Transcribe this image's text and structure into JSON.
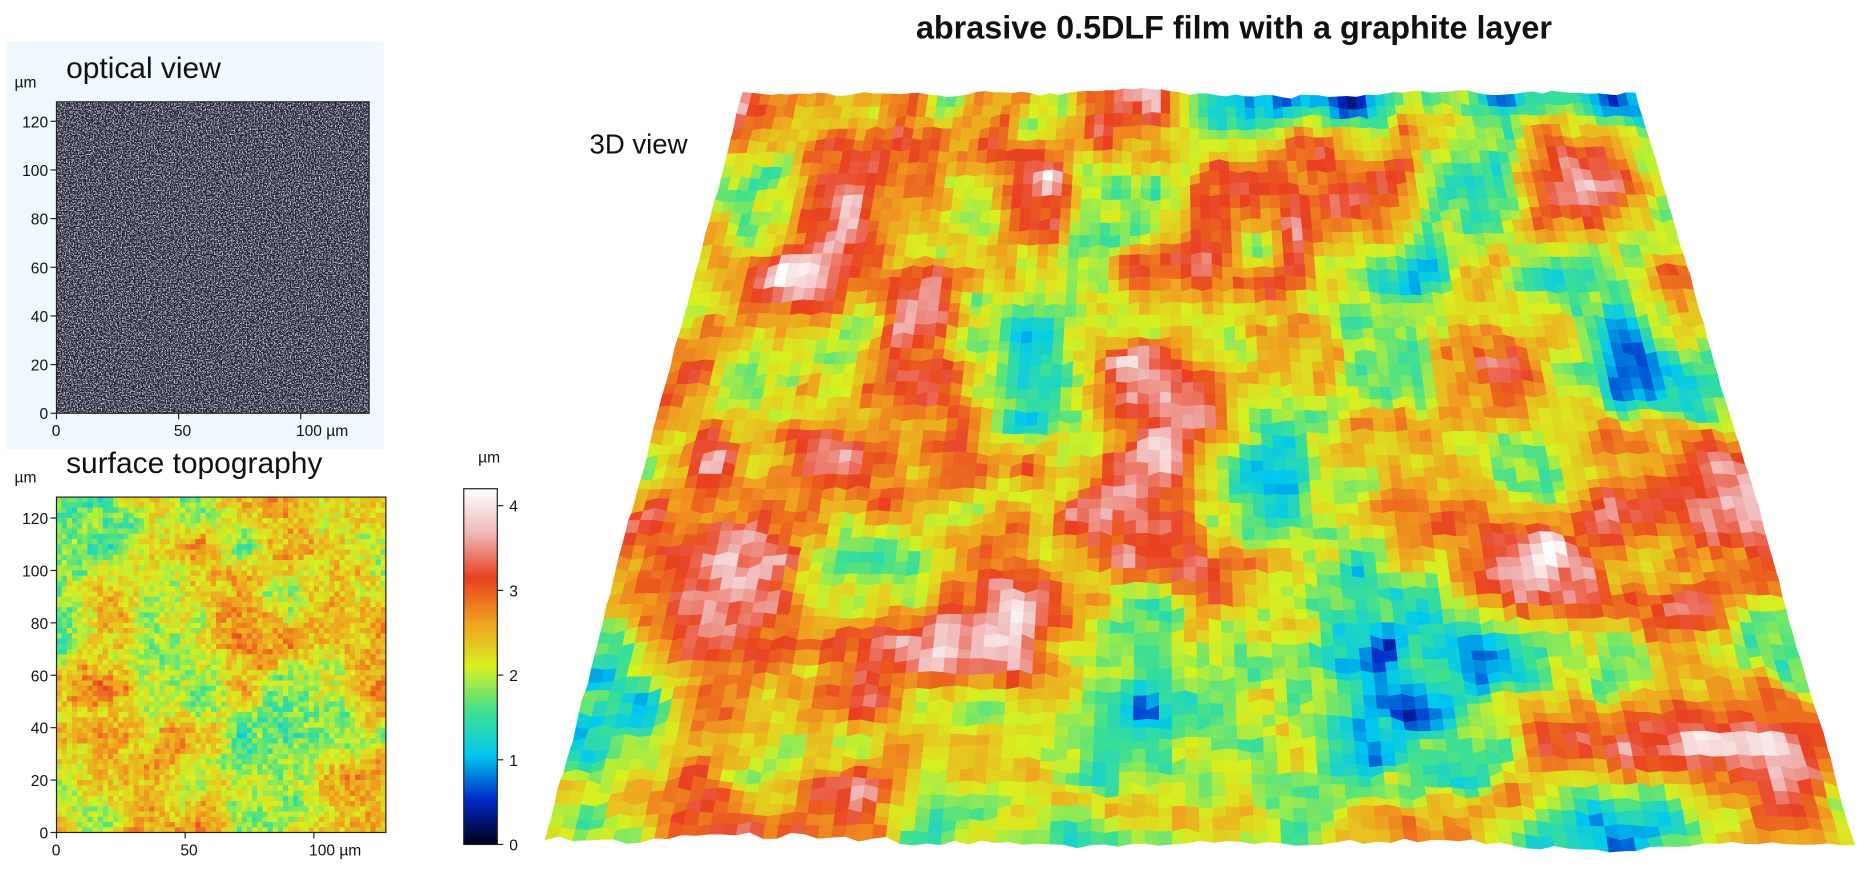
{
  "title": "abrasive 0.5DLF film with a graphite layer",
  "chart_data": [
    {
      "type": "optical",
      "title": "optical view",
      "y_unit": "µm",
      "xlim": [
        0,
        128
      ],
      "ylim": [
        0,
        128
      ],
      "xticks": [
        0,
        50,
        {
          "value": 100,
          "label": "100 µm"
        }
      ],
      "yticks": [
        0,
        20,
        40,
        60,
        80,
        100,
        120
      ]
    },
    {
      "type": "topography",
      "title": "surface topography",
      "y_unit": "µm",
      "xlim": [
        0,
        128
      ],
      "ylim": [
        0,
        128
      ],
      "xticks": [
        0,
        50,
        {
          "value": 100,
          "label": "100 µm"
        }
      ],
      "yticks": [
        0,
        20,
        40,
        60,
        80,
        100,
        120
      ]
    },
    {
      "type": "colorbar",
      "unit": "µm",
      "ylim": [
        0,
        4.2
      ],
      "yticks": [
        0,
        1,
        2,
        3,
        4
      ],
      "colormap": [
        "#000018",
        "#0028c8",
        "#00c8f0",
        "#40e090",
        "#d8f020",
        "#f0a020",
        "#e84020",
        "#f0b8b8",
        "#ffffff"
      ]
    },
    {
      "type": "surface3d",
      "title": "3D view"
    }
  ]
}
